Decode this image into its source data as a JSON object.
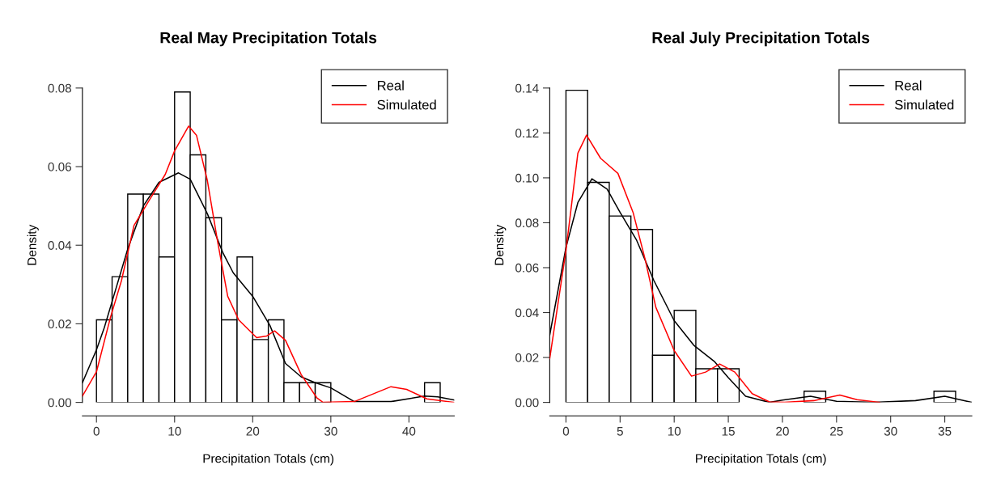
{
  "chart_data": [
    {
      "type": "histogram",
      "title": "Real May Precipitation Totals",
      "xlabel": "Precipitation Totals (cm)",
      "ylabel": "Density",
      "color": "#ffffff",
      "bins": [
        0,
        2,
        4,
        6,
        8,
        10,
        12,
        14,
        16,
        18,
        20,
        22,
        24,
        26,
        28,
        30,
        32,
        34,
        36,
        38,
        40,
        42,
        44
      ],
      "values": [
        0.021,
        0.032,
        0.053,
        0.053,
        0.037,
        0.079,
        0.063,
        0.047,
        0.021,
        0.037,
        0.016,
        0.021,
        0.005,
        0.005,
        0.005,
        0,
        0,
        0,
        0,
        0,
        0,
        0.005
      ],
      "xlim": [
        -1.8,
        45.8
      ],
      "xticks": [
        0,
        10,
        20,
        30,
        40
      ],
      "ylim": [
        0,
        0.08
      ],
      "yticks": [
        {
          "value": 0,
          "label": "0.00"
        },
        {
          "value": 0.02,
          "label": "0.02"
        },
        {
          "value": 0.04,
          "label": "0.04"
        },
        {
          "value": 0.06,
          "label": "0.06"
        },
        {
          "value": 0.08,
          "label": "0.08"
        }
      ],
      "legend": "top right",
      "grid": false,
      "series": [
        {
          "type": "line",
          "name": "Real",
          "color": "#000000",
          "x": [
            -1.8,
            0,
            1,
            2.2,
            4,
            6,
            8,
            10.5,
            12,
            14.2,
            16.2,
            17.5,
            20,
            22.2,
            24.2,
            26.2,
            28,
            30,
            33,
            37.7,
            42,
            43.7,
            45.8
          ],
          "values": [
            0.005,
            0.0134,
            0.019,
            0.027,
            0.039,
            0.05,
            0.056,
            0.0584,
            0.0568,
            0.048,
            0.038,
            0.033,
            0.027,
            0.0196,
            0.0099,
            0.0065,
            0.005,
            0.0037,
            0.0002,
            0.0002,
            0.0016,
            0.0014,
            0.0006
          ]
        },
        {
          "type": "line",
          "name": "Simulated",
          "color": "#ff0000",
          "x": [
            -1.8,
            0,
            1.8,
            3.2,
            4.8,
            6.8,
            8.8,
            10,
            11.8,
            12.8,
            14.2,
            15.5,
            16.8,
            18.2,
            20.5,
            21.8,
            22.8,
            24.2,
            26.2,
            28.2,
            29,
            33,
            37.7,
            39.7,
            42.3,
            45.8
          ],
          "values": [
            0.0016,
            0.0078,
            0.0217,
            0.031,
            0.045,
            0.0516,
            0.058,
            0.064,
            0.0703,
            0.068,
            0.0564,
            0.041,
            0.027,
            0.021,
            0.0165,
            0.0169,
            0.0182,
            0.0158,
            0.0071,
            0.0012,
            0,
            0.0002,
            0.004,
            0.0033,
            0.0009,
            0
          ]
        }
      ]
    },
    {
      "type": "histogram",
      "title": "Real July Precipitation Totals",
      "xlabel": "Precipitation Totals (cm)",
      "ylabel": "Density",
      "color": "#ffffff",
      "bins": [
        0,
        2,
        4,
        6,
        8,
        10,
        12,
        14,
        16,
        18,
        20,
        22,
        24,
        26,
        28,
        30,
        32,
        34,
        36
      ],
      "values": [
        0.139,
        0.098,
        0.083,
        0.077,
        0.021,
        0.041,
        0.015,
        0.015,
        0,
        0,
        0,
        0.005,
        0,
        0,
        0,
        0,
        0,
        0.005
      ],
      "xlim": [
        -1.5,
        37.5
      ],
      "xticks": [
        0,
        5,
        10,
        15,
        20,
        25,
        30,
        35
      ],
      "ylim": [
        0,
        0.14
      ],
      "yticks": [
        {
          "value": 0,
          "label": "0.00"
        },
        {
          "value": 0.02,
          "label": "0.02"
        },
        {
          "value": 0.04,
          "label": "0.04"
        },
        {
          "value": 0.06,
          "label": "0.06"
        },
        {
          "value": 0.08,
          "label": "0.08"
        },
        {
          "value": 0.1,
          "label": "0.10"
        },
        {
          "value": 0.12,
          "label": "0.12"
        },
        {
          "value": 0.14,
          "label": "0.14"
        }
      ],
      "legend": "top right",
      "grid": false,
      "series": [
        {
          "type": "line",
          "name": "Real",
          "color": "#000000",
          "x": [
            -1.5,
            0,
            1.1,
            2.4,
            3.8,
            5,
            6.5,
            8.1,
            10,
            11.8,
            13.7,
            15,
            16.6,
            18.8,
            20,
            22.6,
            25,
            28.5,
            32.3,
            35,
            37.5
          ],
          "values": [
            0.03,
            0.069,
            0.089,
            0.0996,
            0.095,
            0.0846,
            0.0725,
            0.0545,
            0.0364,
            0.0255,
            0.0183,
            0.011,
            0.0027,
            0,
            0.001,
            0.0027,
            0.0005,
            0,
            0.0008,
            0.0027,
            0
          ]
        },
        {
          "type": "line",
          "name": "Simulated",
          "color": "#ff0000",
          "x": [
            -1.5,
            0,
            1.1,
            1.9,
            3.2,
            4.8,
            6.2,
            7.3,
            8.3,
            10,
            11.6,
            12.9,
            14.2,
            15.6,
            17.2,
            18.8,
            20.2,
            22.9,
            25.3,
            26.9,
            29
          ],
          "values": [
            0.0195,
            0.0677,
            0.111,
            0.119,
            0.1087,
            0.102,
            0.0846,
            0.064,
            0.0424,
            0.0231,
            0.0117,
            0.0135,
            0.0171,
            0.0135,
            0.0039,
            0.0002,
            0,
            0.0008,
            0.0033,
            0.0012,
            0
          ]
        }
      ]
    }
  ]
}
